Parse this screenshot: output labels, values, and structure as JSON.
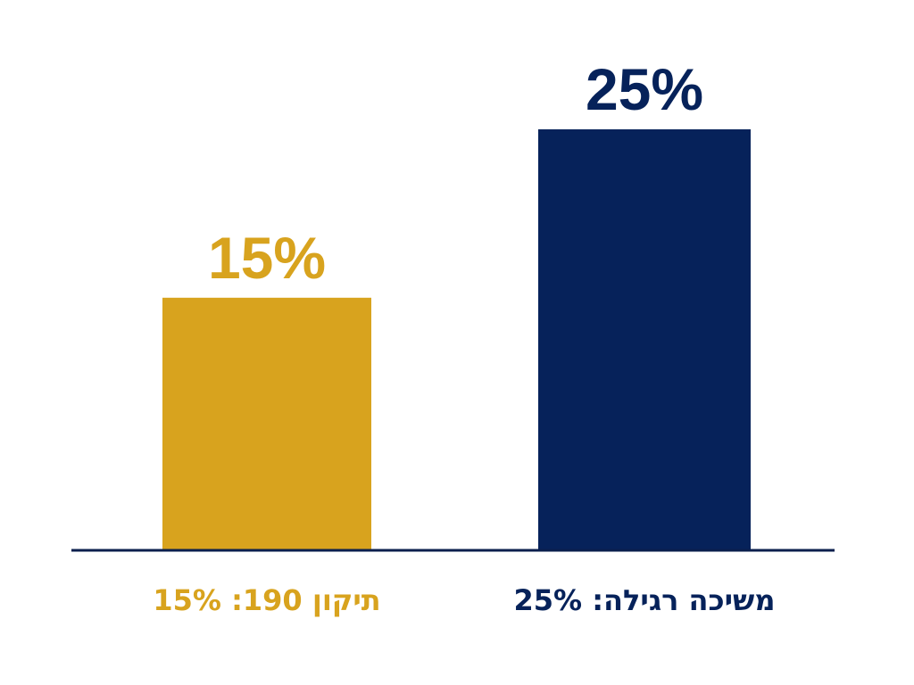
{
  "chart_data": {
    "type": "bar",
    "categories": [
      "תיקון 190: 15%",
      "משיכה רגילה: 25%"
    ],
    "values": [
      15,
      25
    ],
    "value_labels": [
      "15%",
      "25%"
    ],
    "colors": [
      "#D8A31E",
      "#06225A"
    ],
    "axis_color": "#0A1F4D",
    "ylim": [
      0,
      25
    ],
    "title": "",
    "xlabel": "",
    "ylabel": "",
    "grid": false
  }
}
